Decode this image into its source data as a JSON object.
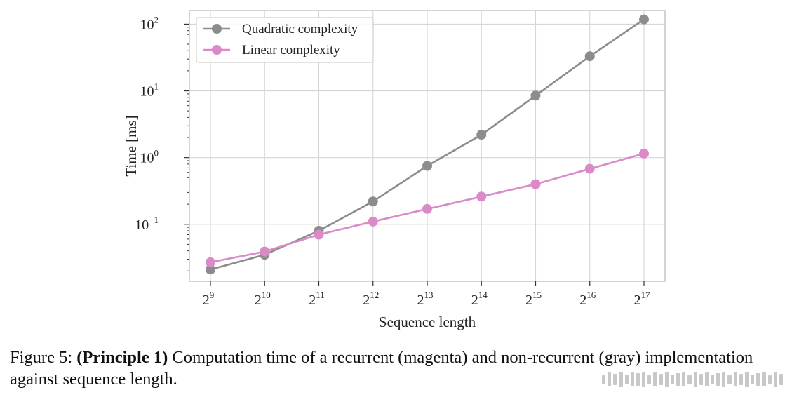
{
  "chart_data": {
    "type": "line",
    "xlabel": "Sequence length",
    "ylabel": "Time [ms]",
    "x_scale": "log2",
    "y_scale": "log10",
    "x": [
      512,
      1024,
      2048,
      4096,
      8192,
      16384,
      32768,
      65536,
      131072
    ],
    "x_tick_labels": [
      {
        "base": "2",
        "exp": "9"
      },
      {
        "base": "2",
        "exp": "10"
      },
      {
        "base": "2",
        "exp": "11"
      },
      {
        "base": "2",
        "exp": "12"
      },
      {
        "base": "2",
        "exp": "13"
      },
      {
        "base": "2",
        "exp": "14"
      },
      {
        "base": "2",
        "exp": "15"
      },
      {
        "base": "2",
        "exp": "16"
      },
      {
        "base": "2",
        "exp": "17"
      }
    ],
    "y_ticks": [
      0.1,
      1,
      10,
      100
    ],
    "y_tick_labels": [
      {
        "base": "10",
        "exp": "−1"
      },
      {
        "base": "10",
        "exp": "0"
      },
      {
        "base": "10",
        "exp": "1"
      },
      {
        "base": "10",
        "exp": "2"
      }
    ],
    "ylim": [
      0.014,
      160
    ],
    "grid": true,
    "legend_position": "top-left",
    "series": [
      {
        "name": "Quadratic complexity",
        "color": "#8c8c8c",
        "values": [
          0.021,
          0.035,
          0.08,
          0.22,
          0.75,
          2.2,
          8.5,
          33,
          118
        ]
      },
      {
        "name": "Linear complexity",
        "color": "#d98ac7",
        "values": [
          0.027,
          0.039,
          0.07,
          0.11,
          0.17,
          0.26,
          0.4,
          0.68,
          1.15
        ]
      }
    ]
  },
  "caption": {
    "prefix": "Figure 5: ",
    "bold": "(Principle 1)",
    "rest": " Computation time of a recurrent (magenta) and non-recurrent (gray) implementation against sequence length."
  }
}
